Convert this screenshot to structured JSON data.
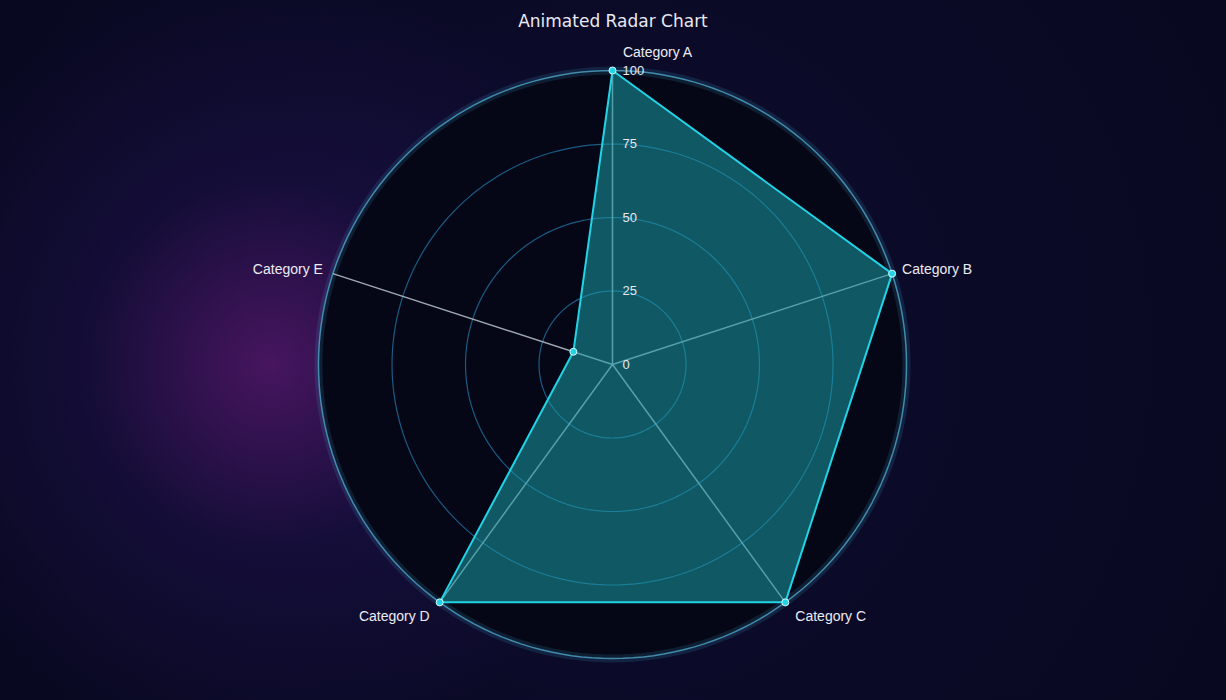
{
  "chart_data": {
    "type": "radar",
    "title": "Animated Radar Chart",
    "categories": [
      "Category A",
      "Category B",
      "Category C",
      "Category D",
      "Category E"
    ],
    "values": [
      100,
      100,
      100,
      100,
      14
    ],
    "color": "#22d3e6",
    "ylim": [
      0,
      100
    ],
    "yticks": [
      0,
      25,
      50,
      75,
      100
    ],
    "grid": true
  }
}
